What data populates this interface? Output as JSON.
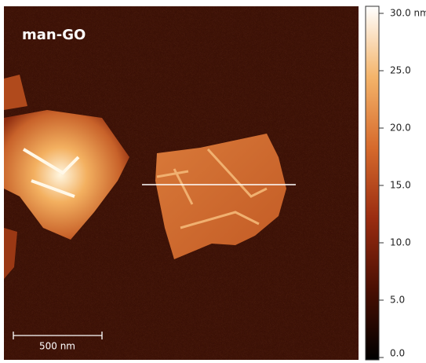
{
  "image": {
    "label": "man-GO",
    "scale_bar": "500 nm",
    "colorbar": {
      "lim": [
        0,
        30
      ],
      "ticks": [
        {
          "value": 0,
          "label": "0.0"
        },
        {
          "value": 5,
          "label": "5.0"
        },
        {
          "value": 10,
          "label": "10.0"
        },
        {
          "value": 15,
          "label": "15.0"
        },
        {
          "value": 20,
          "label": "20.0"
        },
        {
          "value": 25,
          "label": "25.0"
        },
        {
          "value": 30,
          "label": "30.0 nm"
        }
      ]
    }
  }
}
